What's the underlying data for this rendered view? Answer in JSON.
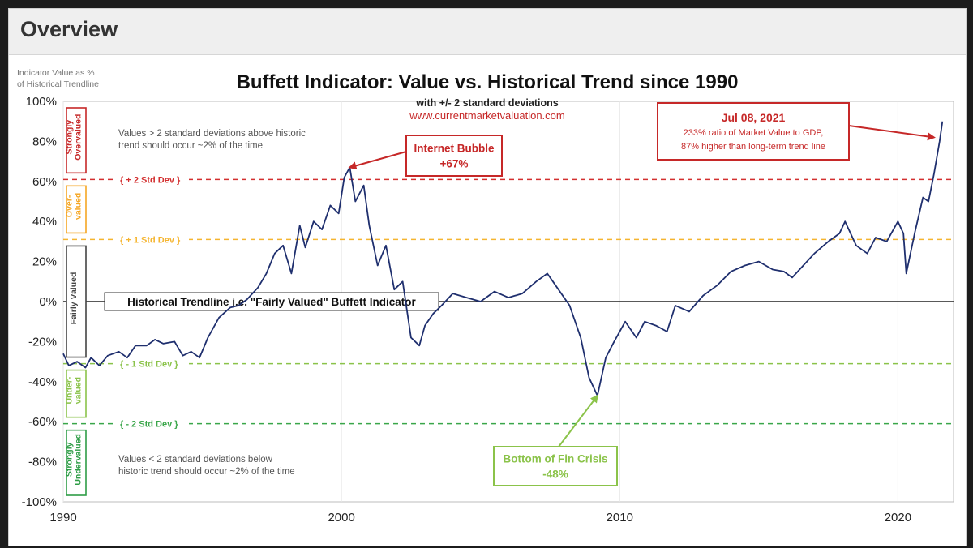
{
  "header": {
    "title": "Overview"
  },
  "chart_data": {
    "type": "line",
    "title": "Buffett Indicator: Value vs. Historical Trend since 1990",
    "subtitle": "with +/- 2 standard deviations",
    "source": "www.currentmarketvaluation.com",
    "ylabel_lines": [
      "Indicator Value as %",
      "of Historical Trendline"
    ],
    "xlim": [
      1990,
      2022
    ],
    "ylim": [
      -100,
      100
    ],
    "x_ticks": [
      {
        "value": 1990,
        "label": "1990"
      },
      {
        "value": 2000,
        "label": "2000"
      },
      {
        "value": 2010,
        "label": "2010"
      },
      {
        "value": 2020,
        "label": "2020"
      }
    ],
    "y_ticks": [
      {
        "value": 100,
        "label": "100%"
      },
      {
        "value": 80,
        "label": "80%"
      },
      {
        "value": 60,
        "label": "60%"
      },
      {
        "value": 40,
        "label": "40%"
      },
      {
        "value": 20,
        "label": "20%"
      },
      {
        "value": 0,
        "label": "0%"
      },
      {
        "value": -20,
        "label": "-20%"
      },
      {
        "value": -40,
        "label": "-40%"
      },
      {
        "value": -60,
        "label": "-60%"
      },
      {
        "value": -80,
        "label": "-80%"
      },
      {
        "value": -100,
        "label": "-100%"
      }
    ],
    "reference_lines": [
      {
        "value": 61,
        "label": "+ 2 Std Dev",
        "color": "#d32f2f"
      },
      {
        "value": 31,
        "label": "+ 1 Std Dev",
        "color": "#f5b530"
      },
      {
        "value": 0,
        "label": "Historical Trendline i.e. \"Fairly Valued\" Buffett Indicator",
        "color": "#222222"
      },
      {
        "value": -31,
        "label": "- 1 Std Dev",
        "color": "#8bc34a"
      },
      {
        "value": -61,
        "label": "- 2 Std Dev",
        "color": "#3aa64a"
      }
    ],
    "zones": [
      {
        "label": "Strongly Overvalued",
        "lines": [
          "Strongly",
          "Overvalued"
        ],
        "color": "#c62828",
        "y_from": 100,
        "y_to": 61
      },
      {
        "label": "Over-valued",
        "lines": [
          "Over-",
          "valued"
        ],
        "color": "#f5a623",
        "y_from": 61,
        "y_to": 31
      },
      {
        "label": "Fairly Valued",
        "lines": [
          "Fairly Valued"
        ],
        "color": "#444444",
        "y_from": 31,
        "y_to": -31
      },
      {
        "label": "Under-valued",
        "lines": [
          "Under-",
          "valued"
        ],
        "color": "#8bc34a",
        "y_from": -31,
        "y_to": -61
      },
      {
        "label": "Strongly Undervalued",
        "lines": [
          "Strongly",
          "Undervalued"
        ],
        "color": "#2e9d46",
        "y_from": -61,
        "y_to": -100
      }
    ],
    "notes": [
      {
        "lines": [
          "Values > 2 standard deviations above historic",
          "trend should occur ~2% of the time"
        ]
      },
      {
        "lines": [
          "Values < 2 standard deviations below",
          "historic trend should occur ~2% of the time"
        ]
      }
    ],
    "annotations": [
      {
        "name": "internet-bubble",
        "lines": [
          "Internet Bubble",
          "+67%"
        ],
        "color": "#c62828",
        "point": {
          "x": 2000.3,
          "y": 67
        }
      },
      {
        "name": "fin-crisis",
        "lines": [
          "Bottom of Fin Crisis",
          "-48%"
        ],
        "color": "#8bc34a",
        "point": {
          "x": 2009.2,
          "y": -47
        }
      },
      {
        "name": "jul-2021",
        "lines": [
          "Jul 08, 2021",
          "233% ratio of Market Value to GDP,",
          "87% higher than long-term trend line"
        ],
        "color": "#c62828",
        "point": {
          "x": 2021.3,
          "y": 82
        }
      }
    ],
    "series": [
      {
        "color": "#1f2f6e",
        "x": [
          1990.0,
          1990.2,
          1990.5,
          1990.8,
          1991.0,
          1991.3,
          1991.6,
          1992.0,
          1992.3,
          1992.6,
          1993.0,
          1993.3,
          1993.6,
          1994.0,
          1994.3,
          1994.6,
          1994.9,
          1995.2,
          1995.6,
          1996.0,
          1996.3,
          1996.6,
          1997.0,
          1997.3,
          1997.6,
          1997.9,
          1998.2,
          1998.5,
          1998.7,
          1999.0,
          1999.3,
          1999.6,
          1999.9,
          2000.1,
          2000.3,
          2000.5,
          2000.8,
          2001.0,
          2001.3,
          2001.6,
          2001.9,
          2002.2,
          2002.5,
          2002.8,
          2003.0,
          2003.3,
          2003.6,
          2004.0,
          2004.5,
          2005.0,
          2005.5,
          2006.0,
          2006.5,
          2007.0,
          2007.4,
          2007.8,
          2008.2,
          2008.6,
          2008.9,
          2009.2,
          2009.5,
          2009.8,
          2010.2,
          2010.6,
          2010.9,
          2011.3,
          2011.7,
          2012.0,
          2012.5,
          2013.0,
          2013.5,
          2014.0,
          2014.5,
          2015.0,
          2015.5,
          2015.9,
          2016.2,
          2016.6,
          2017.0,
          2017.5,
          2017.9,
          2018.1,
          2018.5,
          2018.9,
          2019.2,
          2019.6,
          2020.0,
          2020.2,
          2020.3,
          2020.6,
          2020.9,
          2021.1,
          2021.3,
          2021.5,
          2021.6
        ],
        "y": [
          -26,
          -32,
          -30,
          -33,
          -28,
          -32,
          -27,
          -25,
          -28,
          -22,
          -22,
          -19,
          -21,
          -20,
          -27,
          -25,
          -28,
          -18,
          -8,
          -3,
          -2,
          1,
          7,
          14,
          24,
          28,
          14,
          38,
          27,
          40,
          36,
          48,
          44,
          62,
          67,
          50,
          58,
          38,
          18,
          28,
          6,
          10,
          -18,
          -22,
          -12,
          -6,
          -2,
          4,
          2,
          0,
          5,
          2,
          4,
          10,
          14,
          6,
          -2,
          -18,
          -38,
          -47,
          -28,
          -20,
          -10,
          -18,
          -10,
          -12,
          -15,
          -2,
          -5,
          3,
          8,
          15,
          18,
          20,
          16,
          15,
          12,
          18,
          24,
          30,
          34,
          40,
          28,
          24,
          32,
          30,
          40,
          34,
          14,
          34,
          52,
          50,
          64,
          80,
          90
        ]
      }
    ]
  }
}
